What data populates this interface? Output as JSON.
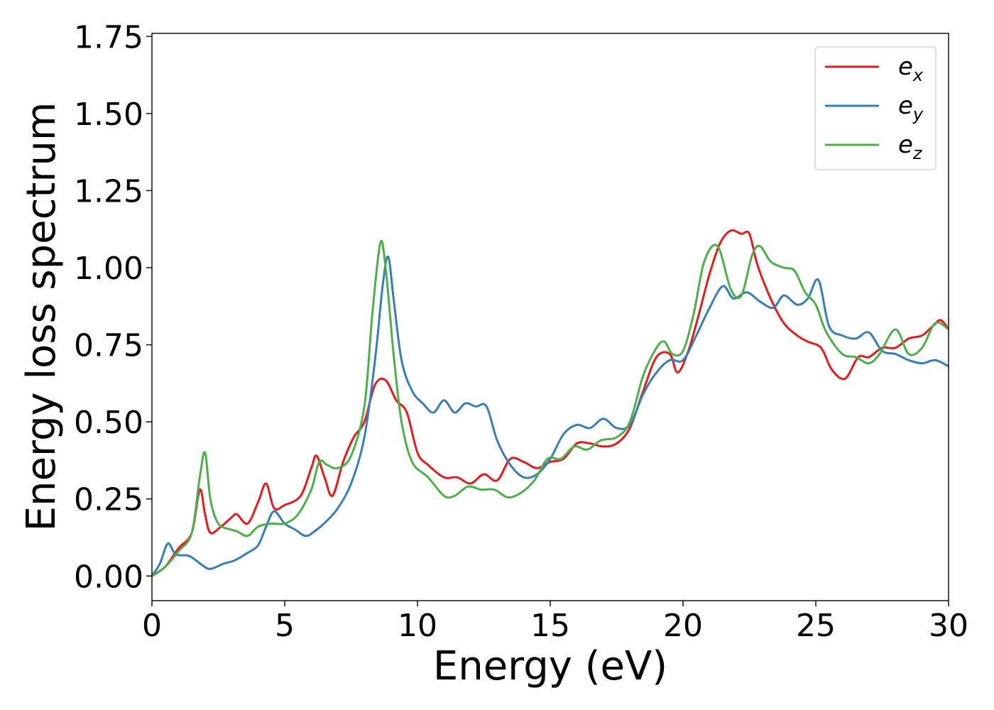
{
  "chart_data": {
    "type": "line",
    "title": "",
    "xlabel": "Energy (eV)",
    "ylabel": "Energy loss spectrum",
    "xlim": [
      0,
      30
    ],
    "ylim": [
      -0.08,
      1.76
    ],
    "xticks": [
      0,
      5,
      10,
      15,
      20,
      25,
      30
    ],
    "xtick_labels": [
      "0",
      "5",
      "10",
      "15",
      "20",
      "25",
      "30"
    ],
    "yticks": [
      0,
      0.25,
      0.5,
      0.75,
      1.0,
      1.25,
      1.5,
      1.75
    ],
    "ytick_labels": [
      "0.00",
      "0.25",
      "0.50",
      "0.75",
      "1.00",
      "1.25",
      "1.50",
      "1.75"
    ],
    "grid": false,
    "legend_position": "top-right",
    "series": [
      {
        "name": "e",
        "subscript": "x",
        "color": "#e41a1c",
        "points": [
          [
            0,
            0
          ],
          [
            0.5,
            0.03
          ],
          [
            1.0,
            0.09
          ],
          [
            1.5,
            0.14
          ],
          [
            1.8,
            0.28
          ],
          [
            2.0,
            0.2
          ],
          [
            2.2,
            0.14
          ],
          [
            2.6,
            0.16
          ],
          [
            3.0,
            0.19
          ],
          [
            3.2,
            0.2
          ],
          [
            3.6,
            0.17
          ],
          [
            4.0,
            0.24
          ],
          [
            4.3,
            0.3
          ],
          [
            4.6,
            0.22
          ],
          [
            5.0,
            0.23
          ],
          [
            5.6,
            0.26
          ],
          [
            6.0,
            0.35
          ],
          [
            6.2,
            0.39
          ],
          [
            6.5,
            0.32
          ],
          [
            6.8,
            0.26
          ],
          [
            7.2,
            0.37
          ],
          [
            7.6,
            0.45
          ],
          [
            8.0,
            0.5
          ],
          [
            8.4,
            0.62
          ],
          [
            8.8,
            0.635
          ],
          [
            9.2,
            0.57
          ],
          [
            9.6,
            0.53
          ],
          [
            10.0,
            0.4
          ],
          [
            10.4,
            0.36
          ],
          [
            11.0,
            0.32
          ],
          [
            11.5,
            0.32
          ],
          [
            12.0,
            0.3
          ],
          [
            12.5,
            0.33
          ],
          [
            13.0,
            0.31
          ],
          [
            13.5,
            0.38
          ],
          [
            14.0,
            0.37
          ],
          [
            14.5,
            0.35
          ],
          [
            15.0,
            0.37
          ],
          [
            15.5,
            0.38
          ],
          [
            16.0,
            0.43
          ],
          [
            16.5,
            0.43
          ],
          [
            17.0,
            0.42
          ],
          [
            17.5,
            0.43
          ],
          [
            18.0,
            0.48
          ],
          [
            18.5,
            0.6
          ],
          [
            19.0,
            0.71
          ],
          [
            19.5,
            0.72
          ],
          [
            19.8,
            0.66
          ],
          [
            20.2,
            0.73
          ],
          [
            20.6,
            0.85
          ],
          [
            21.0,
            0.98
          ],
          [
            21.4,
            1.08
          ],
          [
            21.8,
            1.12
          ],
          [
            22.2,
            1.11
          ],
          [
            22.5,
            1.11
          ],
          [
            22.8,
            1.01
          ],
          [
            23.3,
            0.9
          ],
          [
            23.8,
            0.82
          ],
          [
            24.3,
            0.78
          ],
          [
            24.7,
            0.76
          ],
          [
            25.2,
            0.74
          ],
          [
            25.6,
            0.67
          ],
          [
            26.1,
            0.64
          ],
          [
            26.6,
            0.71
          ],
          [
            27.0,
            0.71
          ],
          [
            27.5,
            0.74
          ],
          [
            28.0,
            0.74
          ],
          [
            28.5,
            0.77
          ],
          [
            29.0,
            0.78
          ],
          [
            29.4,
            0.81
          ],
          [
            29.7,
            0.83
          ],
          [
            30.0,
            0.8
          ]
        ]
      },
      {
        "name": "e",
        "subscript": "y",
        "color": "#377eb8",
        "points": [
          [
            0,
            0
          ],
          [
            0.3,
            0.04
          ],
          [
            0.6,
            0.105
          ],
          [
            0.9,
            0.07
          ],
          [
            1.4,
            0.065
          ],
          [
            1.9,
            0.035
          ],
          [
            2.2,
            0.023
          ],
          [
            2.7,
            0.04
          ],
          [
            3.1,
            0.05
          ],
          [
            3.6,
            0.075
          ],
          [
            4.0,
            0.1
          ],
          [
            4.3,
            0.16
          ],
          [
            4.6,
            0.21
          ],
          [
            5.0,
            0.17
          ],
          [
            5.4,
            0.15
          ],
          [
            5.8,
            0.13
          ],
          [
            6.2,
            0.15
          ],
          [
            6.6,
            0.18
          ],
          [
            7.0,
            0.22
          ],
          [
            7.5,
            0.3
          ],
          [
            8.0,
            0.45
          ],
          [
            8.4,
            0.7
          ],
          [
            8.7,
            0.95
          ],
          [
            8.9,
            1.035
          ],
          [
            9.1,
            0.9
          ],
          [
            9.4,
            0.7
          ],
          [
            9.8,
            0.6
          ],
          [
            10.2,
            0.56
          ],
          [
            10.6,
            0.53
          ],
          [
            11.0,
            0.57
          ],
          [
            11.4,
            0.53
          ],
          [
            11.8,
            0.56
          ],
          [
            12.2,
            0.55
          ],
          [
            12.6,
            0.55
          ],
          [
            13.0,
            0.44
          ],
          [
            13.5,
            0.36
          ],
          [
            14.0,
            0.32
          ],
          [
            14.5,
            0.33
          ],
          [
            15.0,
            0.38
          ],
          [
            15.5,
            0.46
          ],
          [
            16.0,
            0.49
          ],
          [
            16.5,
            0.48
          ],
          [
            17.0,
            0.51
          ],
          [
            17.5,
            0.48
          ],
          [
            18.0,
            0.49
          ],
          [
            18.5,
            0.59
          ],
          [
            19.0,
            0.66
          ],
          [
            19.5,
            0.7
          ],
          [
            20.0,
            0.7
          ],
          [
            20.5,
            0.78
          ],
          [
            21.0,
            0.87
          ],
          [
            21.5,
            0.94
          ],
          [
            21.9,
            0.9
          ],
          [
            22.4,
            0.92
          ],
          [
            22.9,
            0.89
          ],
          [
            23.4,
            0.87
          ],
          [
            23.8,
            0.91
          ],
          [
            24.3,
            0.88
          ],
          [
            24.7,
            0.9
          ],
          [
            25.1,
            0.96
          ],
          [
            25.5,
            0.81
          ],
          [
            26.0,
            0.78
          ],
          [
            26.5,
            0.77
          ],
          [
            27.0,
            0.79
          ],
          [
            27.5,
            0.73
          ],
          [
            28.0,
            0.72
          ],
          [
            28.5,
            0.7
          ],
          [
            29.0,
            0.69
          ],
          [
            29.5,
            0.7
          ],
          [
            30.0,
            0.68
          ]
        ]
      },
      {
        "name": "e",
        "subscript": "z",
        "color": "#4daf4a",
        "points": [
          [
            0,
            0
          ],
          [
            0.5,
            0.03
          ],
          [
            1.0,
            0.08
          ],
          [
            1.5,
            0.14
          ],
          [
            1.8,
            0.32
          ],
          [
            2.0,
            0.4
          ],
          [
            2.2,
            0.25
          ],
          [
            2.5,
            0.17
          ],
          [
            3.0,
            0.15
          ],
          [
            3.2,
            0.145
          ],
          [
            3.6,
            0.13
          ],
          [
            4.0,
            0.16
          ],
          [
            4.5,
            0.17
          ],
          [
            5.0,
            0.17
          ],
          [
            5.5,
            0.2
          ],
          [
            6.0,
            0.28
          ],
          [
            6.3,
            0.37
          ],
          [
            6.6,
            0.36
          ],
          [
            7.0,
            0.35
          ],
          [
            7.5,
            0.39
          ],
          [
            8.0,
            0.55
          ],
          [
            8.3,
            0.85
          ],
          [
            8.6,
            1.08
          ],
          [
            8.8,
            1.0
          ],
          [
            9.1,
            0.72
          ],
          [
            9.4,
            0.5
          ],
          [
            9.8,
            0.37
          ],
          [
            10.4,
            0.32
          ],
          [
            11.0,
            0.26
          ],
          [
            11.4,
            0.26
          ],
          [
            11.9,
            0.29
          ],
          [
            12.4,
            0.28
          ],
          [
            12.9,
            0.28
          ],
          [
            13.4,
            0.255
          ],
          [
            13.9,
            0.27
          ],
          [
            14.4,
            0.31
          ],
          [
            14.9,
            0.38
          ],
          [
            15.4,
            0.38
          ],
          [
            15.9,
            0.42
          ],
          [
            16.4,
            0.41
          ],
          [
            16.9,
            0.44
          ],
          [
            17.5,
            0.45
          ],
          [
            18.0,
            0.5
          ],
          [
            18.5,
            0.65
          ],
          [
            19.0,
            0.74
          ],
          [
            19.3,
            0.76
          ],
          [
            19.6,
            0.72
          ],
          [
            20.0,
            0.73
          ],
          [
            20.4,
            0.85
          ],
          [
            20.8,
            1.02
          ],
          [
            21.3,
            1.07
          ],
          [
            21.8,
            0.93
          ],
          [
            22.2,
            0.91
          ],
          [
            22.6,
            1.04
          ],
          [
            22.9,
            1.07
          ],
          [
            23.3,
            1.02
          ],
          [
            23.8,
            1.0
          ],
          [
            24.2,
            0.99
          ],
          [
            24.6,
            0.92
          ],
          [
            25.0,
            0.88
          ],
          [
            25.4,
            0.79
          ],
          [
            26.0,
            0.72
          ],
          [
            26.5,
            0.71
          ],
          [
            27.0,
            0.69
          ],
          [
            27.4,
            0.72
          ],
          [
            28.0,
            0.8
          ],
          [
            28.5,
            0.72
          ],
          [
            29.0,
            0.74
          ],
          [
            29.5,
            0.82
          ],
          [
            30.0,
            0.8
          ]
        ]
      }
    ]
  }
}
